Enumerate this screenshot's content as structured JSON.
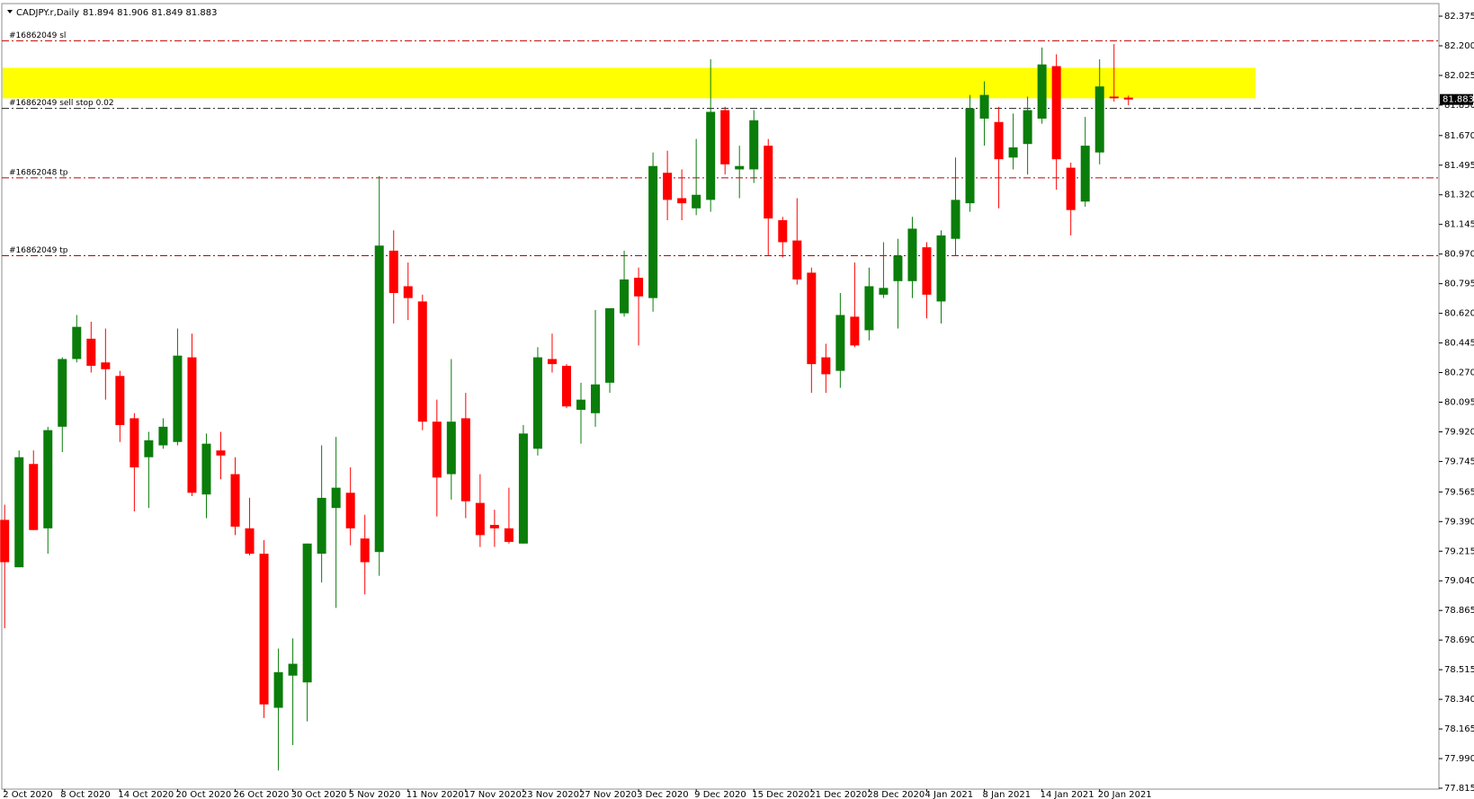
{
  "chart_data": {
    "type": "candlestick",
    "title": "CADJPY.r,Daily",
    "subtitle": "81.894 81.906 81.849 81.883",
    "categories": [
      "2 Oct 2020",
      null,
      null,
      null,
      "8 Oct 2020",
      null,
      null,
      null,
      "14 Oct 2020",
      null,
      null,
      null,
      "20 Oct 2020",
      null,
      null,
      null,
      "26 Oct 2020",
      null,
      null,
      null,
      "30 Oct 2020",
      null,
      null,
      null,
      "5 Nov 2020",
      null,
      null,
      null,
      "11 Nov 2020",
      null,
      null,
      null,
      "17 Nov 2020",
      null,
      null,
      null,
      "23 Nov 2020",
      null,
      null,
      null,
      "27 Nov 2020",
      null,
      null,
      null,
      "3 Dec 2020",
      null,
      null,
      null,
      "9 Dec 2020",
      null,
      null,
      null,
      "15 Dec 2020",
      null,
      null,
      null,
      "21 Dec 2020",
      null,
      null,
      null,
      "28 Dec 2020",
      null,
      null,
      null,
      "4 Jan 2021",
      null,
      null,
      null,
      "8 Jan 2021",
      null,
      null,
      null,
      "14 Jan 2021",
      null,
      null,
      null,
      "20 Jan 2021",
      null,
      null
    ],
    "open": [
      79.4,
      79.12,
      79.73,
      79.35,
      79.95,
      80.35,
      80.47,
      80.33,
      80.25,
      80.0,
      79.77,
      79.84,
      79.86,
      80.36,
      79.55,
      79.81,
      79.67,
      79.35,
      79.2,
      78.29,
      78.48,
      78.44,
      79.2,
      79.47,
      79.56,
      79.29,
      79.21,
      80.99,
      80.78,
      80.69,
      79.98,
      79.67,
      80.0,
      79.5,
      79.37,
      79.35,
      79.26,
      79.82,
      80.35,
      80.31,
      80.05,
      80.03,
      80.21,
      80.62,
      80.83,
      80.71,
      81.45,
      81.3,
      81.24,
      81.29,
      81.82,
      81.47,
      81.47,
      81.61,
      81.17,
      81.05,
      80.86,
      80.36,
      80.28,
      80.6,
      80.52,
      80.73,
      80.81,
      80.81,
      81.01,
      80.69,
      81.06,
      81.27,
      81.77,
      81.75,
      81.54,
      81.62,
      81.77,
      82.08,
      81.48,
      81.28,
      81.57,
      81.9,
      81.894
    ],
    "high": [
      79.49,
      79.81,
      79.81,
      79.95,
      80.36,
      80.61,
      80.57,
      80.53,
      80.28,
      80.03,
      79.92,
      80.0,
      80.53,
      80.5,
      79.91,
      79.92,
      79.77,
      79.53,
      79.28,
      78.64,
      78.7,
      79.26,
      79.84,
      79.89,
      79.71,
      79.43,
      81.43,
      81.11,
      80.92,
      80.73,
      80.11,
      80.35,
      80.15,
      79.67,
      79.46,
      79.59,
      79.96,
      80.42,
      80.5,
      80.32,
      80.21,
      80.64,
      80.65,
      80.99,
      80.89,
      81.57,
      81.58,
      81.47,
      81.65,
      82.12,
      81.84,
      81.61,
      81.82,
      81.65,
      81.19,
      81.3,
      80.89,
      80.44,
      80.74,
      80.92,
      80.89,
      81.04,
      81.06,
      81.19,
      81.04,
      81.11,
      81.54,
      81.91,
      81.99,
      81.84,
      81.8,
      81.9,
      82.19,
      82.15,
      81.51,
      81.78,
      82.12,
      82.21,
      81.906
    ],
    "low": [
      78.76,
      79.12,
      79.34,
      79.2,
      79.8,
      80.33,
      80.27,
      80.11,
      79.86,
      79.45,
      79.47,
      79.82,
      79.84,
      79.54,
      79.41,
      79.64,
      79.31,
      79.19,
      78.23,
      77.92,
      78.07,
      78.21,
      79.03,
      78.88,
      79.25,
      78.96,
      79.07,
      80.56,
      80.58,
      79.93,
      79.42,
      79.52,
      79.41,
      79.24,
      79.24,
      79.26,
      79.26,
      79.78,
      80.27,
      80.06,
      79.85,
      79.95,
      80.15,
      80.6,
      80.43,
      80.63,
      81.17,
      81.17,
      81.2,
      81.22,
      81.44,
      81.3,
      81.39,
      80.96,
      80.95,
      80.79,
      80.15,
      80.15,
      80.18,
      80.42,
      80.46,
      80.71,
      80.53,
      80.71,
      80.59,
      80.56,
      80.96,
      81.22,
      81.61,
      81.24,
      81.47,
      81.44,
      81.74,
      81.35,
      81.08,
      81.25,
      81.5,
      81.87,
      81.849
    ],
    "close": [
      79.15,
      79.77,
      79.34,
      79.93,
      80.35,
      80.54,
      80.31,
      80.29,
      79.96,
      79.71,
      79.87,
      79.95,
      80.37,
      79.56,
      79.85,
      79.78,
      79.36,
      79.2,
      78.31,
      78.5,
      78.55,
      79.26,
      79.53,
      79.59,
      79.35,
      79.15,
      81.02,
      80.74,
      80.71,
      79.98,
      79.65,
      79.98,
      79.51,
      79.31,
      79.35,
      79.27,
      79.91,
      80.36,
      80.32,
      80.07,
      80.11,
      80.2,
      80.65,
      80.82,
      80.72,
      81.49,
      81.29,
      81.27,
      81.32,
      81.81,
      81.5,
      81.49,
      81.76,
      81.18,
      81.04,
      80.82,
      80.32,
      80.26,
      80.61,
      80.43,
      80.78,
      80.77,
      80.96,
      81.12,
      80.73,
      81.08,
      81.29,
      81.83,
      81.91,
      81.53,
      81.6,
      81.82,
      82.09,
      81.53,
      81.23,
      81.61,
      81.96,
      81.89,
      81.883
    ],
    "up_color": "#0a7d0a",
    "down_color": "#ff0000",
    "ylim": [
      77.815,
      82.375
    ],
    "yticks": [
      {
        "value": 82.375,
        "label": "82.375"
      },
      {
        "value": 82.2,
        "label": "82.200"
      },
      {
        "value": 82.025,
        "label": "82.025"
      },
      {
        "value": 81.85,
        "label": "81.850"
      },
      {
        "value": 81.67,
        "label": "81.670"
      },
      {
        "value": 81.495,
        "label": "81.495"
      },
      {
        "value": 81.32,
        "label": "81.320"
      },
      {
        "value": 81.145,
        "label": "81.145"
      },
      {
        "value": 80.97,
        "label": "80.970"
      },
      {
        "value": 80.795,
        "label": "80.795"
      },
      {
        "value": 80.62,
        "label": "80.620"
      },
      {
        "value": 80.445,
        "label": "80.445"
      },
      {
        "value": 80.27,
        "label": "80.270"
      },
      {
        "value": 80.095,
        "label": "80.095"
      },
      {
        "value": 79.92,
        "label": "79.920"
      },
      {
        "value": 79.745,
        "label": "79.745"
      },
      {
        "value": 79.565,
        "label": "79.565"
      },
      {
        "value": 79.39,
        "label": "79.390"
      },
      {
        "value": 79.215,
        "label": "79.215"
      },
      {
        "value": 79.04,
        "label": "79.040"
      },
      {
        "value": 78.865,
        "label": "78.865"
      },
      {
        "value": 78.69,
        "label": "78.690"
      },
      {
        "value": 78.515,
        "label": "78.515"
      },
      {
        "value": 78.34,
        "label": "78.340"
      },
      {
        "value": 78.165,
        "label": "78.165"
      },
      {
        "value": 77.99,
        "label": "77.990"
      },
      {
        "value": 77.815,
        "label": "77.815"
      }
    ],
    "grid": false,
    "levels": [
      {
        "label": "#16862049 sl",
        "value": 82.23,
        "color": "#c00000"
      },
      {
        "label": "#16862049 sell stop 0.02",
        "value": 81.83,
        "color": "#202020"
      },
      {
        "label": "#16862048 tp",
        "value": 81.42,
        "color": "#c00000"
      },
      {
        "label": "#16862049 tp",
        "value": 80.96,
        "color": "#c00000"
      }
    ],
    "zones": [
      {
        "from": 81.89,
        "to": 82.07,
        "color": "#ffff00"
      }
    ],
    "last_price": 81.883
  }
}
